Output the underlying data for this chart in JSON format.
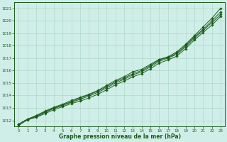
{
  "xlabel": "Graphe pression niveau de la mer (hPa)",
  "xlim": [
    -0.5,
    23.5
  ],
  "ylim": [
    1011.5,
    1021.5
  ],
  "yticks": [
    1012,
    1013,
    1014,
    1015,
    1016,
    1017,
    1018,
    1019,
    1020,
    1021
  ],
  "xticks": [
    0,
    1,
    2,
    3,
    4,
    5,
    6,
    7,
    8,
    9,
    10,
    11,
    12,
    13,
    14,
    15,
    16,
    17,
    18,
    19,
    20,
    21,
    22,
    23
  ],
  "bg_color": "#d0eee8",
  "grid_color": "#b0d8cc",
  "line_color": "#1a5c1a",
  "series1": [
    1011.7,
    1012.1,
    1012.4,
    1012.75,
    1013.05,
    1013.3,
    1013.6,
    1013.85,
    1014.1,
    1014.4,
    1014.8,
    1015.2,
    1015.5,
    1015.9,
    1016.1,
    1016.5,
    1016.9,
    1017.1,
    1017.5,
    1018.1,
    1018.8,
    1019.5,
    1020.2,
    1021.0
  ],
  "series2": [
    1011.7,
    1012.1,
    1012.35,
    1012.7,
    1013.0,
    1013.25,
    1013.5,
    1013.8,
    1014.05,
    1014.35,
    1014.7,
    1015.1,
    1015.4,
    1015.75,
    1016.0,
    1016.4,
    1016.85,
    1017.05,
    1017.4,
    1018.0,
    1018.7,
    1019.3,
    1020.0,
    1020.7
  ],
  "series3": [
    1011.7,
    1012.1,
    1012.3,
    1012.65,
    1012.95,
    1013.2,
    1013.45,
    1013.7,
    1013.95,
    1014.25,
    1014.6,
    1015.0,
    1015.3,
    1015.65,
    1015.9,
    1016.3,
    1016.75,
    1017.0,
    1017.3,
    1017.9,
    1018.6,
    1019.2,
    1019.85,
    1020.5
  ],
  "series4": [
    1011.6,
    1012.05,
    1012.25,
    1012.55,
    1012.85,
    1013.1,
    1013.35,
    1013.55,
    1013.8,
    1014.1,
    1014.45,
    1014.85,
    1015.15,
    1015.5,
    1015.75,
    1016.15,
    1016.6,
    1016.85,
    1017.15,
    1017.75,
    1018.45,
    1019.05,
    1019.65,
    1020.35
  ]
}
